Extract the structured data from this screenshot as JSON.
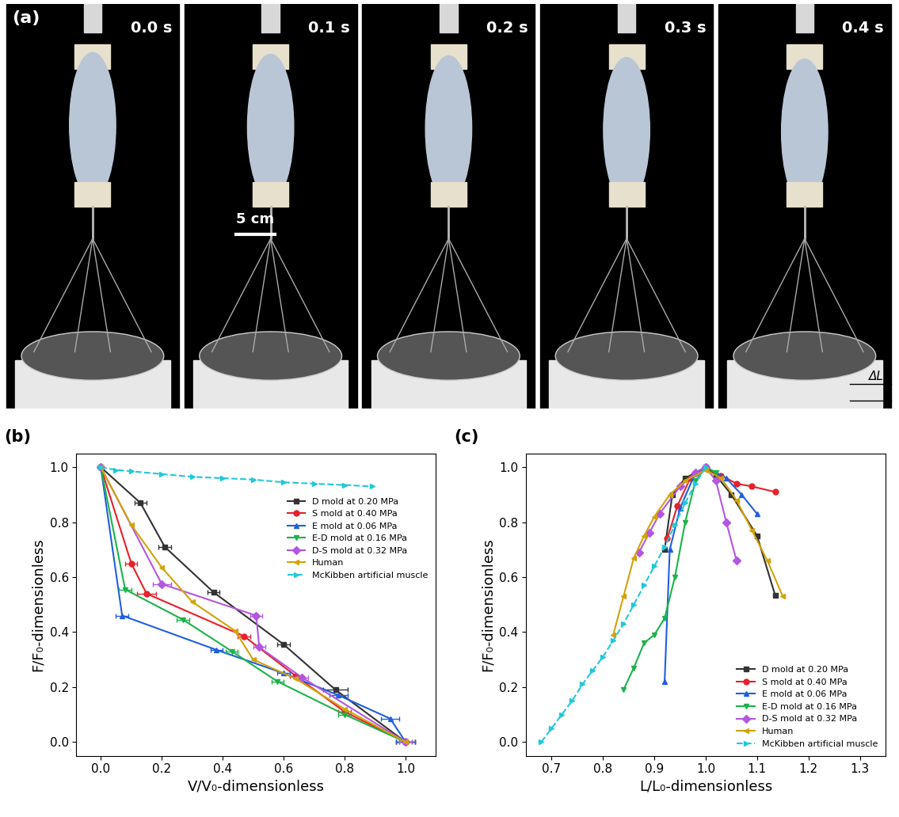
{
  "figure_panel": {
    "label": "(a)",
    "frame_times": [
      "0.0 s",
      "0.1 s",
      "0.2 s",
      "0.3 s",
      "0.4 s"
    ],
    "scale_bar": "5 cm",
    "annotation": "ΔL"
  },
  "chart_data": [
    {
      "type": "line",
      "title": "(b)",
      "xlabel": "V/V₀-dimensionless",
      "ylabel": "F/F₀-dimensionless",
      "xlim": [
        -0.08,
        1.1
      ],
      "ylim": [
        -0.05,
        1.05
      ],
      "xticks": [
        0.0,
        0.2,
        0.4,
        0.6,
        0.8,
        1.0
      ],
      "yticks": [
        0.0,
        0.2,
        0.4,
        0.6,
        0.8,
        1.0
      ],
      "legend": "upper right",
      "series": [
        {
          "name": "D mold at 0.20 MPa",
          "color": "#333333",
          "marker": "square",
          "line_style": "solid",
          "x": [
            0.0,
            0.13,
            0.21,
            0.37,
            0.6,
            0.77,
            1.0
          ],
          "values": [
            1.0,
            0.87,
            0.71,
            0.545,
            0.355,
            0.19,
            0.0
          ],
          "xerr": [
            0.0,
            0.02,
            0.02,
            0.02,
            0.02,
            0.04,
            0.03
          ]
        },
        {
          "name": "S mold at 0.40 MPa",
          "color": "#e8202a",
          "marker": "circle",
          "line_style": "solid",
          "x": [
            0.0,
            0.1,
            0.15,
            0.47,
            0.64,
            0.8,
            1.0
          ],
          "values": [
            1.0,
            0.65,
            0.54,
            0.385,
            0.24,
            0.11,
            0.0
          ],
          "xerr": [
            0.0,
            0.02,
            0.03,
            0.02,
            0.02,
            0.02,
            0.03
          ]
        },
        {
          "name": "E mold at 0.06 MPa",
          "color": "#1f5fe0",
          "marker": "triangle_up",
          "line_style": "solid",
          "x": [
            0.0,
            0.07,
            0.38,
            0.6,
            0.78,
            0.95,
            1.0
          ],
          "values": [
            1.0,
            0.46,
            0.335,
            0.25,
            0.17,
            0.085,
            0.0
          ],
          "xerr": [
            0.0,
            0.02,
            0.02,
            0.02,
            0.03,
            0.03,
            0.03
          ]
        },
        {
          "name": "E-D mold at 0.16 MPa",
          "color": "#1db34a",
          "marker": "triangle_down",
          "line_style": "solid",
          "x": [
            0.0,
            0.08,
            0.27,
            0.43,
            0.58,
            0.8,
            1.0
          ],
          "values": [
            1.0,
            0.555,
            0.445,
            0.33,
            0.22,
            0.1,
            0.0
          ],
          "xerr": [
            0.0,
            0.02,
            0.02,
            0.02,
            0.02,
            0.02,
            0.02
          ]
        },
        {
          "name": "D-S mold at 0.32 MPa",
          "color": "#b356e0",
          "marker": "diamond",
          "line_style": "solid",
          "x": [
            0.0,
            0.2,
            0.51,
            0.52,
            0.66,
            1.0
          ],
          "values": [
            1.0,
            0.575,
            0.46,
            0.345,
            0.235,
            0.0
          ],
          "xerr": [
            0.0,
            0.03,
            0.02,
            0.02,
            0.02,
            0.02
          ]
        },
        {
          "name": "Human",
          "color": "#d4a20a",
          "marker": "triangle_left",
          "line_style": "solid",
          "x": [
            0.0,
            0.1,
            0.2,
            0.3,
            0.44,
            0.5,
            0.64,
            0.8,
            1.0
          ],
          "values": [
            1.0,
            0.79,
            0.635,
            0.51,
            0.405,
            0.3,
            0.23,
            0.12,
            0.0
          ]
        },
        {
          "name": "McKibben artificial muscle",
          "color": "#22c8d8",
          "marker": "triangle_right",
          "line_style": "dashed",
          "x": [
            0.0,
            0.05,
            0.1,
            0.2,
            0.3,
            0.4,
            0.5,
            0.6,
            0.7,
            0.8,
            0.89
          ],
          "values": [
            1.0,
            0.99,
            0.985,
            0.975,
            0.965,
            0.96,
            0.955,
            0.945,
            0.94,
            0.935,
            0.93
          ]
        }
      ]
    },
    {
      "type": "line",
      "title": "(c)",
      "xlabel": "L/L₀-dimensionless",
      "ylabel": "F/F₀-dimensionless",
      "xlim": [
        0.65,
        1.35
      ],
      "ylim": [
        -0.05,
        1.05
      ],
      "xticks": [
        0.7,
        0.8,
        0.9,
        1.0,
        1.1,
        1.2,
        1.3
      ],
      "yticks": [
        0.0,
        0.2,
        0.4,
        0.6,
        0.8,
        1.0
      ],
      "legend": "lower right",
      "series": [
        {
          "name": "D mold at 0.20 MPa",
          "color": "#333333",
          "marker": "square",
          "line_style": "solid",
          "x": [
            0.92,
            0.935,
            0.96,
            1.0,
            1.02,
            1.05,
            1.1,
            1.135
          ],
          "values": [
            0.7,
            0.9,
            0.96,
            1.0,
            0.97,
            0.9,
            0.75,
            0.535
          ]
        },
        {
          "name": "S mold at 0.40 MPa",
          "color": "#e8202a",
          "marker": "circle",
          "line_style": "solid",
          "x": [
            0.925,
            0.945,
            0.97,
            1.0,
            1.03,
            1.06,
            1.09,
            1.135
          ],
          "values": [
            0.74,
            0.86,
            0.96,
            1.0,
            0.97,
            0.94,
            0.93,
            0.91
          ]
        },
        {
          "name": "E mold at 0.06 MPa",
          "color": "#1f5fe0",
          "marker": "triangle_up",
          "line_style": "solid",
          "x": [
            0.92,
            0.93,
            0.95,
            0.98,
            1.0,
            1.04,
            1.07,
            1.1
          ],
          "values": [
            0.22,
            0.7,
            0.85,
            0.98,
            1.0,
            0.96,
            0.9,
            0.83
          ]
        },
        {
          "name": "E-D mold at 0.16 MPa",
          "color": "#1db34a",
          "marker": "triangle_down",
          "line_style": "solid",
          "x": [
            0.84,
            0.86,
            0.88,
            0.9,
            0.92,
            0.94,
            0.96,
            0.98,
            1.0,
            1.02
          ],
          "values": [
            0.19,
            0.27,
            0.36,
            0.39,
            0.45,
            0.6,
            0.8,
            0.95,
            1.0,
            0.98
          ]
        },
        {
          "name": "D-S mold at 0.32 MPa",
          "color": "#b356e0",
          "marker": "diamond",
          "line_style": "solid",
          "x": [
            0.87,
            0.89,
            0.91,
            0.95,
            0.98,
            1.0,
            1.02,
            1.04,
            1.06
          ],
          "values": [
            0.69,
            0.76,
            0.83,
            0.93,
            0.98,
            1.0,
            0.95,
            0.8,
            0.66
          ]
        },
        {
          "name": "Human",
          "color": "#d4a20a",
          "marker": "triangle_left",
          "line_style": "solid",
          "x": [
            0.82,
            0.84,
            0.86,
            0.88,
            0.9,
            0.93,
            0.96,
            1.0,
            1.03,
            1.06,
            1.09,
            1.12,
            1.15
          ],
          "values": [
            0.39,
            0.53,
            0.67,
            0.75,
            0.82,
            0.9,
            0.95,
            0.99,
            0.96,
            0.88,
            0.77,
            0.66,
            0.53
          ]
        },
        {
          "name": "McKibben artificial muscle",
          "color": "#22c8d8",
          "marker": "triangle_right",
          "line_style": "dashed",
          "x": [
            0.68,
            0.7,
            0.72,
            0.74,
            0.76,
            0.78,
            0.8,
            0.82,
            0.84,
            0.86,
            0.88,
            0.9,
            0.92,
            0.94,
            0.96,
            0.98,
            1.0
          ],
          "values": [
            0.0,
            0.05,
            0.1,
            0.15,
            0.21,
            0.26,
            0.31,
            0.37,
            0.43,
            0.5,
            0.57,
            0.64,
            0.71,
            0.79,
            0.87,
            0.94,
            1.0
          ]
        }
      ]
    }
  ]
}
